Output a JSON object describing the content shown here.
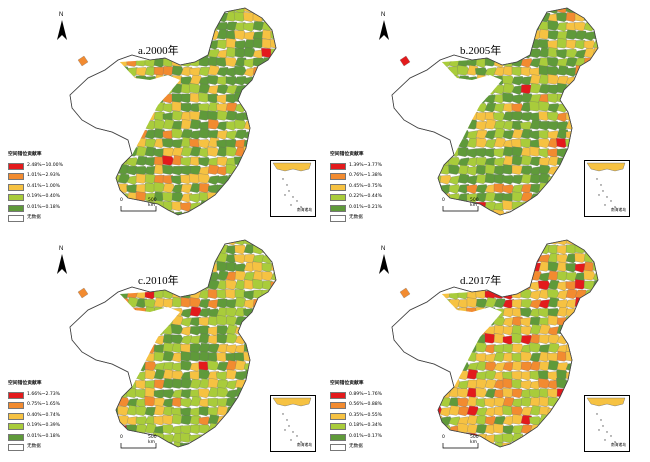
{
  "colors": {
    "red": "#e31a1c",
    "orange": "#f28b30",
    "yellow": "#f6c242",
    "lightgreen": "#a9cc3b",
    "green": "#5f9a3a",
    "nodata": "#ffffff",
    "boundary": "#555555"
  },
  "north_label": "N",
  "inset_label": "南海诸岛",
  "scale": {
    "zero": "0",
    "dist": "500 km"
  },
  "panels": [
    {
      "title": "a.2000年",
      "legend_title": "空间错位贡献率",
      "legend_items": [
        "2.48%~10.00%",
        "1.01%~2.93%",
        "0.41%~1.00%",
        "0.19%~0.40%",
        "0.01%~0.18%",
        "无数据"
      ],
      "dominant": "green"
    },
    {
      "title": "b.2005年",
      "legend_title": "空间错位贡献率",
      "legend_items": [
        "1.39%~3.77%",
        "0.76%~1.38%",
        "0.45%~0.75%",
        "0.22%~0.44%",
        "0.01%~0.21%",
        "无数据"
      ],
      "dominant": "green"
    },
    {
      "title": "c.2010年",
      "legend_title": "空间错位贡献率",
      "legend_items": [
        "1.66%~2.73%",
        "0.75%~1.65%",
        "0.40%~0.74%",
        "0.19%~0.39%",
        "0.01%~0.18%",
        "无数据"
      ],
      "dominant": "lightgreen"
    },
    {
      "title": "d.2017年",
      "legend_title": "空间错位贡献率",
      "legend_items": [
        "0.89%~1.76%",
        "0.56%~0.88%",
        "0.35%~0.55%",
        "0.18%~0.34%",
        "0.01%~0.17%",
        "无数据"
      ],
      "dominant": "yellow"
    }
  ]
}
